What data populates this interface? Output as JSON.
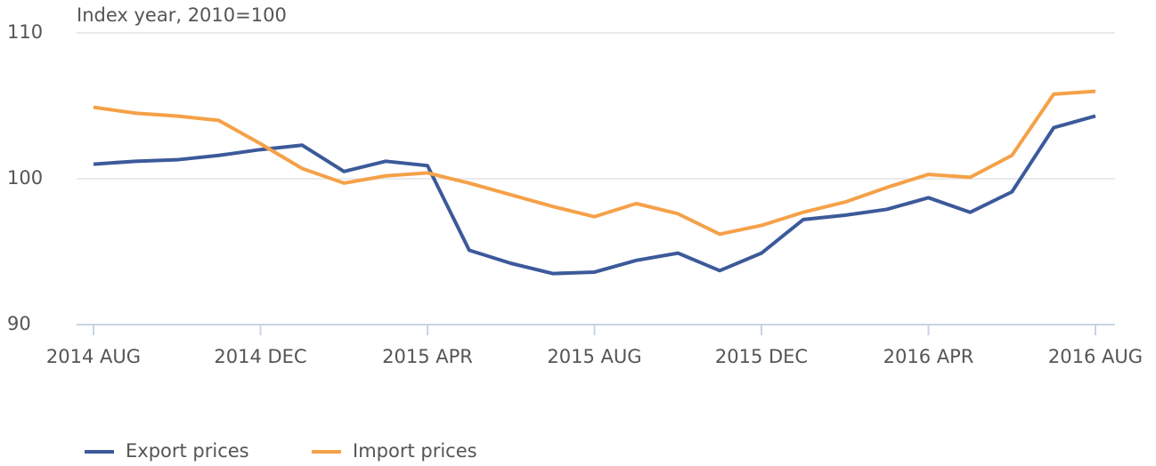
{
  "chart_data": {
    "type": "line",
    "y_label": "Index year, 2010=100",
    "categories": [
      "2014 AUG",
      null,
      null,
      null,
      "2014 DEC",
      null,
      null,
      null,
      "2015 APR",
      null,
      null,
      null,
      "2015 AUG",
      null,
      null,
      null,
      "2015 DEC",
      null,
      null,
      null,
      "2016 APR",
      null,
      null,
      null,
      "2016 AUG"
    ],
    "series": [
      {
        "name": "Export prices",
        "color": "#3c5a9a",
        "values": [
          101.0,
          101.2,
          101.3,
          101.6,
          102.0,
          102.3,
          100.5,
          101.2,
          100.9,
          95.1,
          94.2,
          93.5,
          93.6,
          94.4,
          94.9,
          93.7,
          94.9,
          97.2,
          97.5,
          97.9,
          98.7,
          97.7,
          99.1,
          103.5,
          104.3
        ]
      },
      {
        "name": "Import prices",
        "color": "#f5a148",
        "values": [
          104.9,
          104.5,
          104.3,
          104.0,
          102.4,
          100.7,
          99.7,
          100.2,
          100.4,
          99.7,
          98.9,
          98.1,
          97.4,
          98.3,
          97.6,
          96.2,
          96.8,
          97.7,
          98.4,
          99.4,
          100.3,
          100.1,
          101.6,
          105.8,
          106.0
        ]
      }
    ],
    "ylim": [
      90,
      110
    ],
    "yticks": [
      90,
      100,
      110
    ],
    "grid": true,
    "legend": "bottom-left"
  }
}
